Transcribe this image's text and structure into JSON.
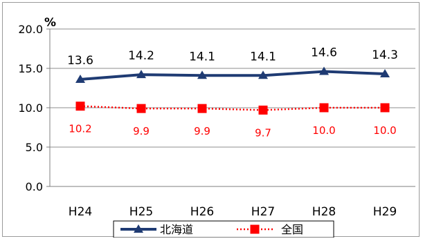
{
  "chart_data": {
    "type": "line",
    "categories": [
      "H24",
      "H25",
      "H26",
      "H27",
      "H28",
      "H29"
    ],
    "series": [
      {
        "name": "北海道",
        "values": [
          13.6,
          14.2,
          14.1,
          14.1,
          14.6,
          14.3
        ],
        "color": "#1f3b73",
        "marker": "triangle",
        "style": "solid"
      },
      {
        "name": "全国",
        "values": [
          10.2,
          9.9,
          9.9,
          9.7,
          10.0,
          10.0
        ],
        "color": "#ff0000",
        "marker": "square",
        "style": "dotted"
      }
    ],
    "ylabel": "%",
    "ylim": [
      0,
      20
    ],
    "yticks": [
      "0.0",
      "5.0",
      "10.0",
      "15.0",
      "20.0"
    ],
    "grid": true,
    "legend": "bottom",
    "data_labels": {
      "北海道": [
        "13.6",
        "14.2",
        "14.1",
        "14.1",
        "14.6",
        "14.3"
      ],
      "全国": [
        "10.2",
        "9.9",
        "9.9",
        "9.7",
        "10.0",
        "10.0"
      ]
    }
  }
}
